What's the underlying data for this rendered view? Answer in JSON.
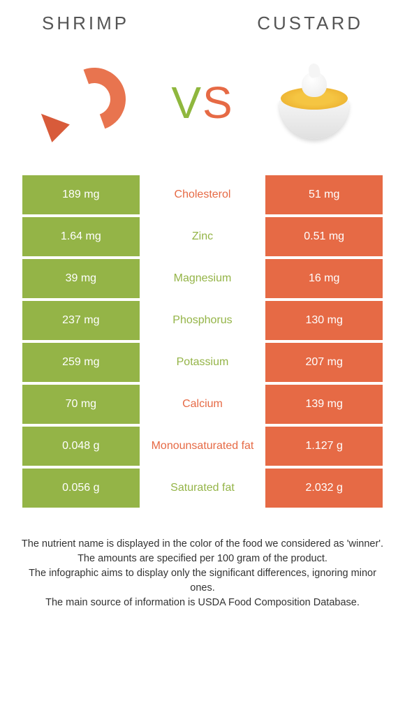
{
  "colors": {
    "shrimp": "#94b447",
    "custard": "#e66a45",
    "text_white": "#ffffff"
  },
  "header": {
    "left": "Shrimp",
    "right": "Custard",
    "vs_v": "V",
    "vs_s": "S"
  },
  "rows": [
    {
      "left": "189 mg",
      "label": "Cholesterol",
      "right": "51 mg",
      "winner": "custard"
    },
    {
      "left": "1.64 mg",
      "label": "Zinc",
      "right": "0.51 mg",
      "winner": "shrimp"
    },
    {
      "left": "39 mg",
      "label": "Magnesium",
      "right": "16 mg",
      "winner": "shrimp"
    },
    {
      "left": "237 mg",
      "label": "Phosphorus",
      "right": "130 mg",
      "winner": "shrimp"
    },
    {
      "left": "259 mg",
      "label": "Potassium",
      "right": "207 mg",
      "winner": "shrimp"
    },
    {
      "left": "70 mg",
      "label": "Calcium",
      "right": "139 mg",
      "winner": "custard"
    },
    {
      "left": "0.048 g",
      "label": "Monounsaturated fat",
      "right": "1.127 g",
      "winner": "custard"
    },
    {
      "left": "0.056 g",
      "label": "Saturated fat",
      "right": "2.032 g",
      "winner": "shrimp"
    }
  ],
  "footer": {
    "l1": "The nutrient name is displayed in the color of the food we considered as 'winner'.",
    "l2": "The amounts are specified per 100 gram of the product.",
    "l3": "The infographic aims to display only the significant differences, ignoring minor ones.",
    "l4": "The main source of information is USDA Food Composition Database."
  }
}
